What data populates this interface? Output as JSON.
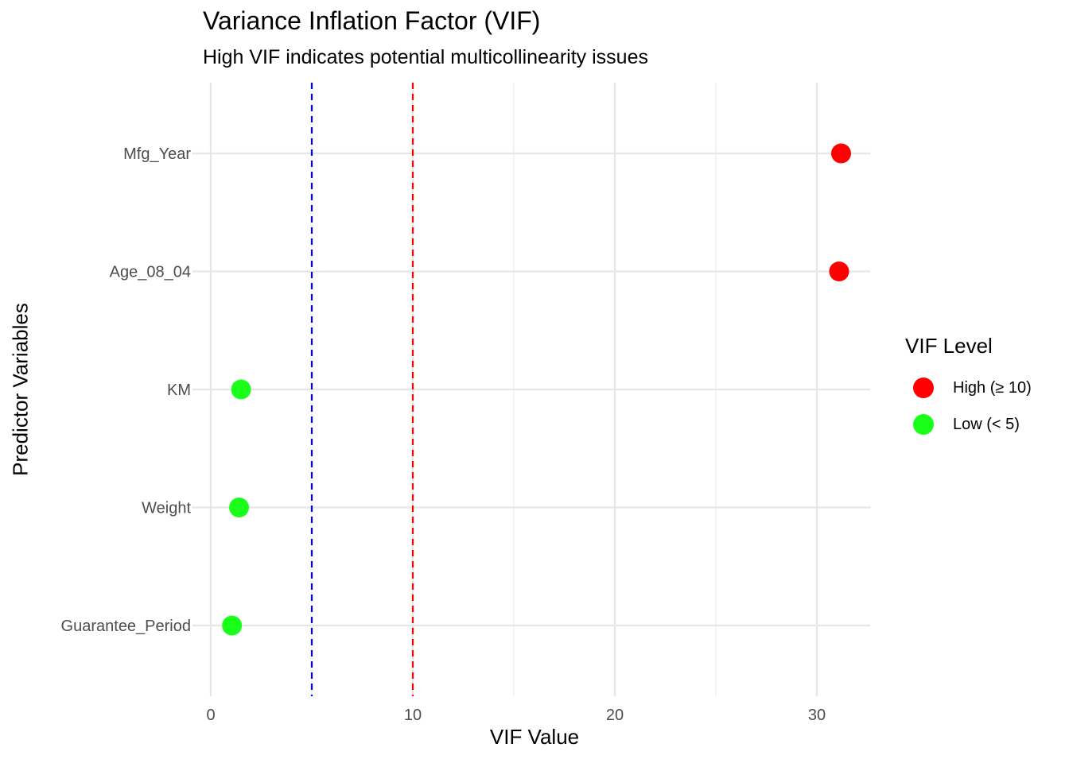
{
  "chart_data": {
    "type": "scatter",
    "title": "Variance Inflation Factor (VIF)",
    "subtitle": "High VIF indicates potential multicollinearity issues",
    "xlabel": "VIF Value",
    "ylabel": "Predictor Variables",
    "xlim": [
      0,
      32.7
    ],
    "xticks": [
      0,
      10,
      20,
      30
    ],
    "categories": [
      "Mfg_Year",
      "Age_08_04",
      "KM",
      "Weight",
      "Guarantee_Period"
    ],
    "points": [
      {
        "category": "Mfg_Year",
        "value": 31.2,
        "level": "High (≥ 10)"
      },
      {
        "category": "Age_08_04",
        "value": 31.1,
        "level": "High (≥ 10)"
      },
      {
        "category": "KM",
        "value": 1.5,
        "level": "Low (< 5)"
      },
      {
        "category": "Weight",
        "value": 1.4,
        "level": "Low (< 5)"
      },
      {
        "category": "Guarantee_Period",
        "value": 1.05,
        "level": "Low (< 5)"
      }
    ],
    "reference_lines": [
      {
        "x": 5,
        "color": "#0000ff",
        "style": "dashed"
      },
      {
        "x": 10,
        "color": "#ff0000",
        "style": "dashed"
      }
    ],
    "grid": true,
    "legend": {
      "title": "VIF Level",
      "position": "right",
      "items": [
        {
          "label": "High (≥ 10)",
          "color": "#ff0000"
        },
        {
          "label": "Low (< 5)",
          "color": "#1aff1a"
        }
      ]
    }
  }
}
